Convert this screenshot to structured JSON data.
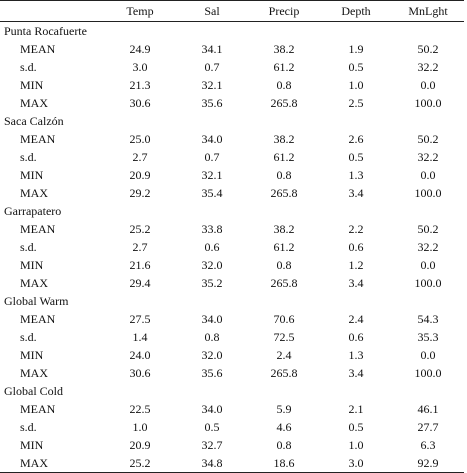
{
  "columns": [
    "",
    "Temp",
    "Sal",
    "Precip",
    "Depth",
    "MnLght"
  ],
  "groups": [
    {
      "name": "Punta Rocafuerte",
      "rows": [
        {
          "stat": "MEAN",
          "values": [
            "24.9",
            "34.1",
            "38.2",
            "1.9",
            "50.2"
          ]
        },
        {
          "stat": "s.d.",
          "values": [
            "3.0",
            "0.7",
            "61.2",
            "0.5",
            "32.2"
          ]
        },
        {
          "stat": "MIN",
          "values": [
            "21.3",
            "32.1",
            "0.8",
            "1.0",
            "0.0"
          ]
        },
        {
          "stat": "MAX",
          "values": [
            "30.6",
            "35.6",
            "265.8",
            "2.5",
            "100.0"
          ]
        }
      ]
    },
    {
      "name": "Saca Calzón",
      "rows": [
        {
          "stat": "MEAN",
          "values": [
            "25.0",
            "34.0",
            "38.2",
            "2.6",
            "50.2"
          ]
        },
        {
          "stat": "s.d.",
          "values": [
            "2.7",
            "0.7",
            "61.2",
            "0.5",
            "32.2"
          ]
        },
        {
          "stat": "MIN",
          "values": [
            "20.9",
            "32.1",
            "0.8",
            "1.3",
            "0.0"
          ]
        },
        {
          "stat": "MAX",
          "values": [
            "29.2",
            "35.4",
            "265.8",
            "3.4",
            "100.0"
          ]
        }
      ]
    },
    {
      "name": "Garrapatero",
      "rows": [
        {
          "stat": "MEAN",
          "values": [
            "25.2",
            "33.8",
            "38.2",
            "2.2",
            "50.2"
          ]
        },
        {
          "stat": "s.d.",
          "values": [
            "2.7",
            "0.6",
            "61.2",
            "0.6",
            "32.2"
          ]
        },
        {
          "stat": "MIN",
          "values": [
            "21.6",
            "32.0",
            "0.8",
            "1.2",
            "0.0"
          ]
        },
        {
          "stat": "MAX",
          "values": [
            "29.4",
            "35.2",
            "265.8",
            "3.4",
            "100.0"
          ]
        }
      ]
    },
    {
      "name": "Global Warm",
      "rows": [
        {
          "stat": "MEAN",
          "values": [
            "27.5",
            "34.0",
            "70.6",
            "2.4",
            "54.3"
          ]
        },
        {
          "stat": "s.d.",
          "values": [
            "1.4",
            "0.8",
            "72.5",
            "0.6",
            "35.3"
          ]
        },
        {
          "stat": "MIN",
          "values": [
            "24.0",
            "32.0",
            "2.4",
            "1.3",
            "0.0"
          ]
        },
        {
          "stat": "MAX",
          "values": [
            "30.6",
            "35.6",
            "265.8",
            "3.4",
            "100.0"
          ]
        }
      ]
    },
    {
      "name": "Global Cold",
      "rows": [
        {
          "stat": "MEAN",
          "values": [
            "22.5",
            "34.0",
            "5.9",
            "2.1",
            "46.1"
          ]
        },
        {
          "stat": "s.d.",
          "values": [
            "1.0",
            "0.5",
            "4.6",
            "0.5",
            "27.7"
          ]
        },
        {
          "stat": "MIN",
          "values": [
            "20.9",
            "32.7",
            "0.8",
            "1.0",
            "6.3"
          ]
        },
        {
          "stat": "MAX",
          "values": [
            "25.2",
            "34.8",
            "18.6",
            "3.0",
            "92.9"
          ]
        }
      ]
    }
  ]
}
